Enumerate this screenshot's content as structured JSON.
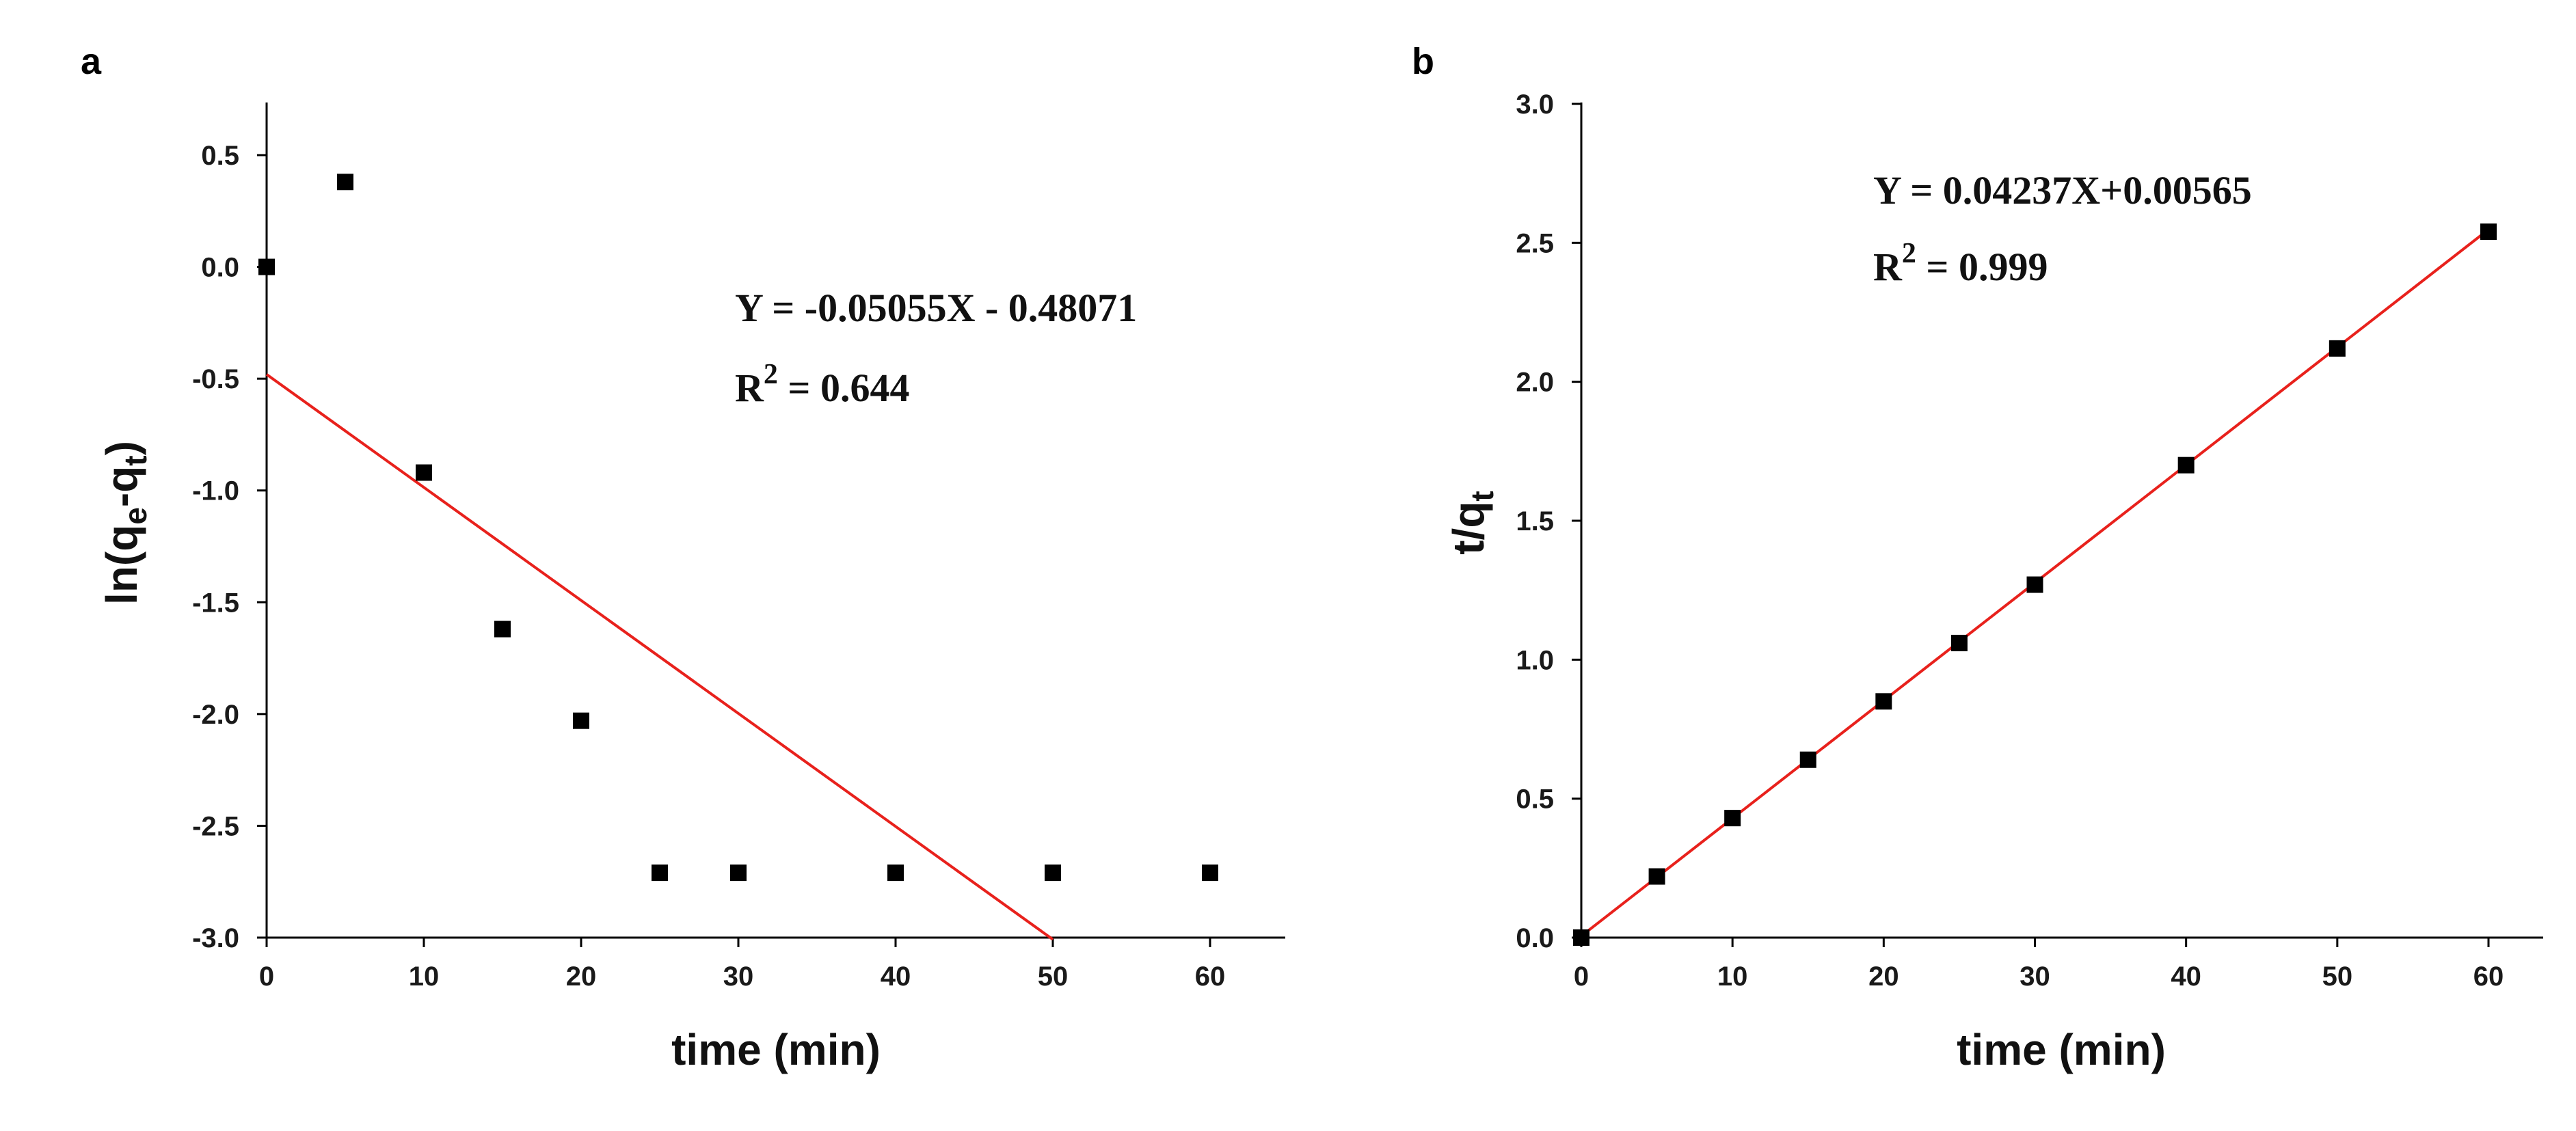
{
  "chart_data": [
    {
      "type": "scatter",
      "panel": "a",
      "xlabel": "time (min)",
      "ylabel": {
        "prefix": "ln(q",
        "sub1": "e",
        "mid": "-q",
        "sub2": "t",
        "suffix": ")"
      },
      "xlim": [
        0,
        65
      ],
      "ylim": [
        -3.0,
        0.75
      ],
      "xticks": [
        0,
        10,
        20,
        30,
        40,
        50,
        60
      ],
      "xtick_labels": [
        "0",
        "10",
        "20",
        "30",
        "40",
        "50",
        "60"
      ],
      "yticks": [
        0.5,
        0.0,
        -0.5,
        -1.0,
        -1.5,
        -2.0,
        -2.5,
        -3.0
      ],
      "ytick_labels": [
        "0.5",
        "0.0",
        "-0.5",
        "-1.0",
        "-1.5",
        "-2.0",
        "-2.5",
        "-3.0"
      ],
      "grid": false,
      "series": [
        {
          "kind": "points",
          "x": [
            0,
            5,
            10,
            15,
            20,
            25,
            30,
            40,
            50,
            60
          ],
          "y": [
            0.0,
            0.38,
            -0.92,
            -1.62,
            -2.03,
            -2.71,
            -2.71,
            -2.71,
            -2.71,
            -2.71
          ]
        },
        {
          "kind": "fit-line",
          "color": "#e8211c",
          "slope": -0.05055,
          "intercept": -0.48071,
          "x_range": [
            0,
            50
          ]
        }
      ],
      "annotations": {
        "equation": "Y = -0.05055X - 0.48071",
        "r2_base": "R",
        "r2_sup": "2",
        "r2_value": " = 0.644"
      }
    },
    {
      "type": "scatter",
      "panel": "b",
      "xlabel": "time (min)",
      "ylabel": {
        "prefix": "t/q",
        "sub": "t"
      },
      "xlim": [
        0,
        65
      ],
      "ylim": [
        0.0,
        3.0
      ],
      "xticks": [
        0,
        10,
        20,
        30,
        40,
        50,
        60
      ],
      "xtick_labels": [
        "0",
        "10",
        "20",
        "30",
        "40",
        "50",
        "60"
      ],
      "yticks": [
        3.0,
        2.5,
        2.0,
        1.5,
        1.0,
        0.5,
        0.0
      ],
      "ytick_labels": [
        "3.0",
        "2.5",
        "2.0",
        "1.5",
        "1.0",
        "0.5",
        "0.0"
      ],
      "grid": false,
      "series": [
        {
          "kind": "points",
          "x": [
            0,
            5,
            10,
            15,
            20,
            25,
            30,
            40,
            50,
            60
          ],
          "y": [
            0.0,
            0.22,
            0.43,
            0.64,
            0.85,
            1.06,
            1.27,
            1.7,
            2.12,
            2.54
          ]
        },
        {
          "kind": "fit-line",
          "color": "#e8211c",
          "slope": 0.04237,
          "intercept": 0.00565,
          "x_range": [
            0,
            60
          ]
        }
      ],
      "annotations": {
        "equation": "Y = 0.04237X+0.00565",
        "r2_base": "R",
        "r2_sup": "2",
        "r2_value": " = 0.999"
      }
    }
  ],
  "colors": {
    "points": "#000000",
    "fit_line": "#e8211c",
    "axes": "#000000"
  }
}
